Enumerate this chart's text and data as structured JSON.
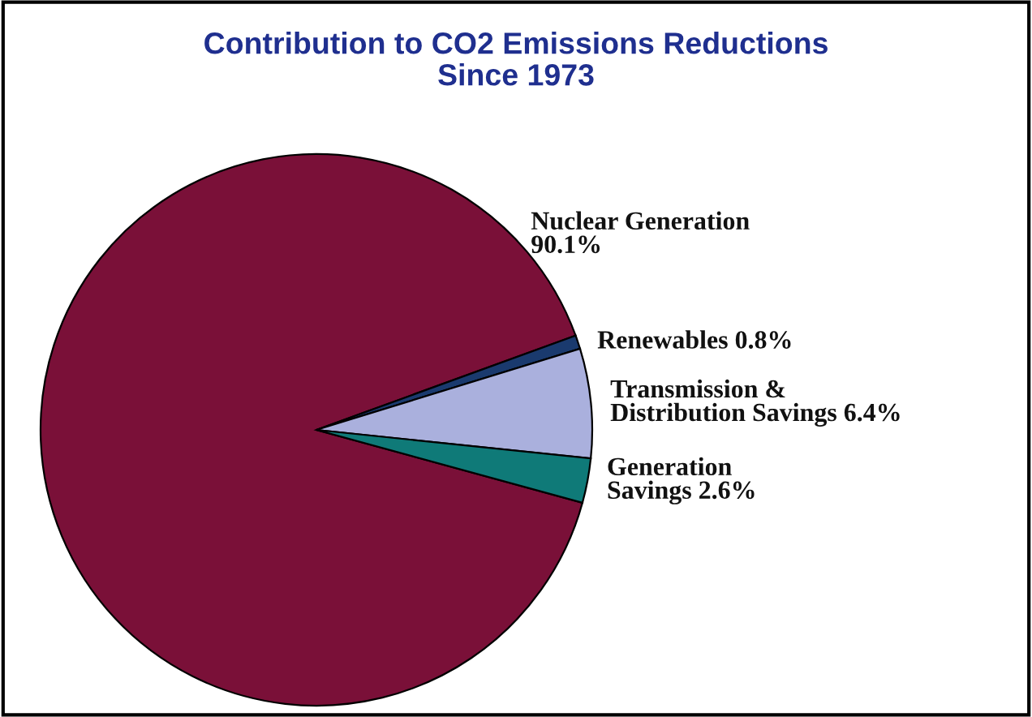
{
  "chart_data": {
    "type": "pie",
    "title": "Contribution to CO2 Emissions Reductions\nSince 1973",
    "categories": [
      "Nuclear Generation",
      "Renewables",
      "Transmission &\nDistribution Savings",
      "Generation\nSavings"
    ],
    "values": [
      90.1,
      0.8,
      6.4,
      2.6
    ],
    "value_labels": [
      "90.1%",
      "0.8%",
      "6.4%",
      "2.6%"
    ],
    "colors": [
      "#7a1038",
      "#1a3a6e",
      "#aab0dd",
      "#0f7a78"
    ]
  }
}
